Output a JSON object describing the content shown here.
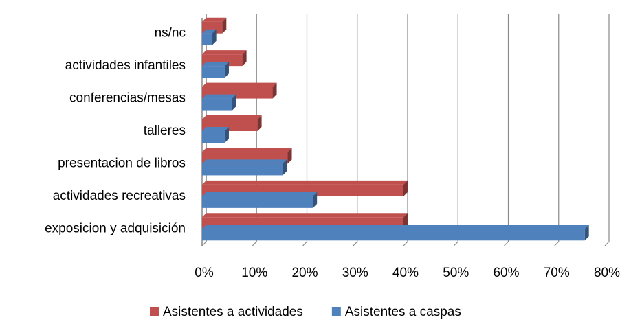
{
  "chart_data": {
    "type": "bar",
    "orientation": "horizontal",
    "categories": [
      "ns/nc",
      "actividades infantiles",
      "conferencias/mesas",
      "talleres",
      "presentacion de libros",
      "actividades recreativas",
      "exposicion y adquisición"
    ],
    "series": [
      {
        "name": "Asistentes a actividades",
        "color": "#c0504d",
        "values": [
          4,
          8,
          14,
          11,
          17,
          40,
          40
        ]
      },
      {
        "name": "Asistentes a caspas",
        "color": "#4f81bd",
        "values": [
          2,
          4.5,
          6,
          4.5,
          16,
          22,
          76
        ]
      }
    ],
    "xlim": [
      0,
      80
    ],
    "xticks": [
      {
        "value": 0,
        "label": "0%"
      },
      {
        "value": 10,
        "label": "10%"
      },
      {
        "value": 20,
        "label": "20%"
      },
      {
        "value": 30,
        "label": "30%"
      },
      {
        "value": 40,
        "label": "40%"
      },
      {
        "value": 50,
        "label": "50%"
      },
      {
        "value": 60,
        "label": "60%"
      },
      {
        "value": 70,
        "label": "70%"
      },
      {
        "value": 80,
        "label": "80%"
      }
    ],
    "grid": true,
    "legend": "bottom"
  }
}
